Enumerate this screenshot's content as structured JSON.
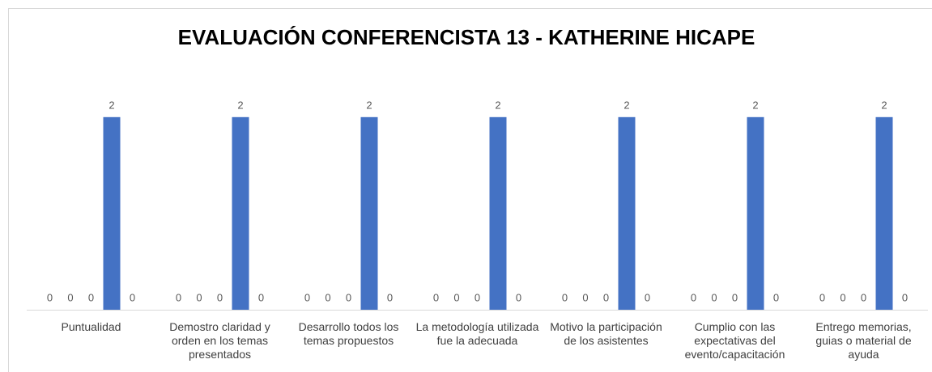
{
  "chart_data": {
    "type": "bar",
    "title": "EVALUACIÓN CONFERENCISTA  13 - KATHERINE HICAPE",
    "categories": [
      "Puntualidad",
      "Demostro claridad y orden en los temas presentados",
      "Desarrollo todos los temas propuestos",
      "La metodología utilizada fue la adecuada",
      "Motivo la participación de los asistentes",
      "Cumplio con las expectativas del evento/capacitación",
      "Entrego memorias, guias o material de ayuda"
    ],
    "series": [
      {
        "values": [
          0,
          0,
          0,
          0,
          0,
          0,
          0
        ]
      },
      {
        "values": [
          0,
          0,
          0,
          0,
          0,
          0,
          0
        ]
      },
      {
        "values": [
          0,
          0,
          0,
          0,
          0,
          0,
          0
        ]
      },
      {
        "values": [
          2,
          2,
          2,
          2,
          2,
          2,
          2
        ]
      },
      {
        "values": [
          0,
          0,
          0,
          0,
          0,
          0,
          0
        ]
      }
    ],
    "color": "#4472c4",
    "ylim": [
      0,
      2.2
    ]
  }
}
